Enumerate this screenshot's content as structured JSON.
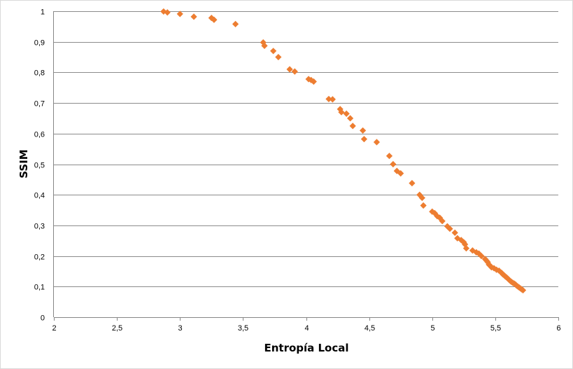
{
  "chart_data": {
    "type": "scatter",
    "title": "",
    "xlabel": "Entropía Local",
    "ylabel": "SSIM",
    "xlim": [
      2,
      6
    ],
    "ylim": [
      0,
      1
    ],
    "grid": true,
    "legend": "none",
    "marker": "diamond",
    "x_ticks": [
      "2",
      "2,5",
      "3",
      "3,5",
      "4",
      "4,5",
      "5",
      "5,5",
      "6"
    ],
    "y_ticks": [
      "0",
      "0,1",
      "0,2",
      "0,3",
      "0,4",
      "0,5",
      "0,6",
      "0,7",
      "0,8",
      "0,9",
      "1"
    ],
    "colors": {
      "marker": "#ED7D31",
      "grid": "#8C8C8C"
    },
    "series": [
      {
        "x": [
          2.87,
          2.9,
          3.0,
          3.11,
          3.25,
          3.27,
          3.44,
          3.66,
          3.67,
          3.74,
          3.78,
          3.87,
          3.91,
          4.02,
          4.04,
          4.06,
          4.18,
          4.21,
          4.27,
          4.28,
          4.32,
          4.35,
          4.37,
          4.45,
          4.46,
          4.56,
          4.66,
          4.69,
          4.72,
          4.75,
          4.84,
          4.9,
          4.92,
          4.93,
          5.0,
          5.02,
          5.04,
          5.06,
          5.08,
          5.12,
          5.14,
          5.18,
          5.2,
          5.23,
          5.25,
          5.26,
          5.27,
          5.32,
          5.35,
          5.37,
          5.39,
          5.42,
          5.43,
          5.44,
          5.45,
          5.46,
          5.47,
          5.49,
          5.51,
          5.53,
          5.55,
          5.56,
          5.57,
          5.58,
          5.59,
          5.6,
          5.61,
          5.62,
          5.63,
          5.64,
          5.65,
          5.66,
          5.67,
          5.68,
          5.69,
          5.7,
          5.71,
          5.72
        ],
        "y": [
          0.999,
          0.996,
          0.991,
          0.982,
          0.978,
          0.972,
          0.958,
          0.898,
          0.887,
          0.87,
          0.85,
          0.81,
          0.803,
          0.778,
          0.775,
          0.77,
          0.713,
          0.712,
          0.68,
          0.67,
          0.665,
          0.65,
          0.625,
          0.61,
          0.582,
          0.572,
          0.527,
          0.5,
          0.478,
          0.47,
          0.438,
          0.4,
          0.39,
          0.365,
          0.345,
          0.34,
          0.33,
          0.325,
          0.314,
          0.297,
          0.289,
          0.276,
          0.258,
          0.252,
          0.245,
          0.238,
          0.225,
          0.218,
          0.212,
          0.208,
          0.2,
          0.19,
          0.185,
          0.18,
          0.172,
          0.168,
          0.163,
          0.16,
          0.155,
          0.152,
          0.145,
          0.14,
          0.137,
          0.133,
          0.13,
          0.126,
          0.122,
          0.118,
          0.115,
          0.112,
          0.11,
          0.107,
          0.103,
          0.1,
          0.097,
          0.094,
          0.091,
          0.088
        ]
      }
    ]
  }
}
